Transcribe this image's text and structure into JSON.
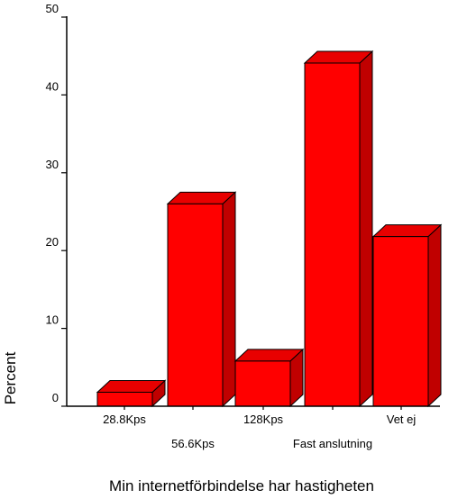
{
  "chart_data": {
    "type": "bar",
    "style": "3d",
    "categories": [
      "28.8Kps",
      "56.6Kps",
      "128Kps",
      "Fast anslutning",
      "Vet ej"
    ],
    "values": [
      1.8,
      26.0,
      5.8,
      44.1,
      21.8
    ],
    "xlabel": "Min internetförbindelse har hastigheten",
    "ylabel": "Percent",
    "ylim": [
      0,
      50
    ],
    "yticks": [
      0,
      10,
      20,
      30,
      40,
      50
    ],
    "grid": false,
    "legend": "none",
    "colors": {
      "bar_fill": "#ff0000",
      "bar_top": "#e80000",
      "bar_side": "#c00000",
      "bar_stroke": "#000000",
      "axis": "#000000"
    }
  }
}
